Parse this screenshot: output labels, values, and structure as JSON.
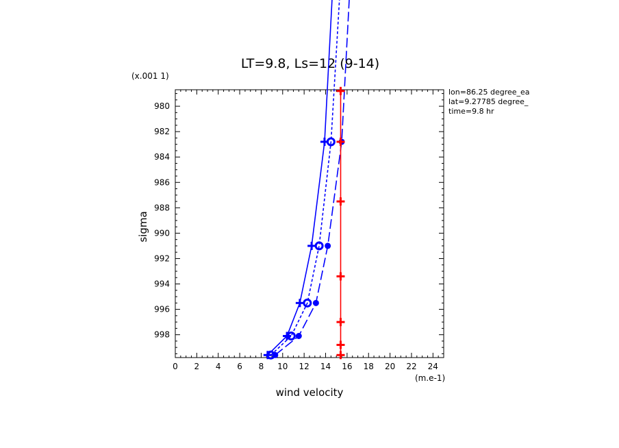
{
  "chart_data": {
    "type": "line",
    "title": "LT=9.8, Ls=12 (9-14)",
    "xlabel": "wind velocity",
    "x_unit_label": "(m.e-1)",
    "ylabel": "sigma",
    "y_scale_label": "(x.001 1)",
    "xlim": [
      0,
      25
    ],
    "ylim": [
      999.8,
      978.7
    ],
    "x_ticks": [
      "0",
      "2",
      "4",
      "6",
      "8",
      "10",
      "12",
      "14",
      "16",
      "18",
      "20",
      "22",
      "24"
    ],
    "y_ticks": [
      "980",
      "982",
      "984",
      "986",
      "988",
      "990",
      "992",
      "994",
      "996",
      "998"
    ],
    "annotations": [
      "lon=86.25 degree_ea",
      "lat=9.27785 degree_",
      "time=9.8 hr"
    ],
    "series": [
      {
        "line": "solid",
        "color": "#0000ff",
        "marker": "plus",
        "x": [
          8.6,
          10.4,
          11.6,
          12.7,
          13.9,
          14.7
        ],
        "y": [
          999.6,
          998.1,
          995.5,
          991.0,
          982.8,
          970.0
        ]
      },
      {
        "line": "dotted",
        "color": "#0000ff",
        "marker": "circle",
        "x": [
          8.9,
          10.8,
          12.3,
          13.4,
          14.5,
          15.4
        ],
        "y": [
          999.6,
          998.1,
          995.5,
          991.0,
          982.8,
          970.0
        ]
      },
      {
        "line": "dashed",
        "color": "#0000ff",
        "marker": "dot",
        "x": [
          9.3,
          11.5,
          13.1,
          14.2,
          15.5,
          16.3
        ],
        "y": [
          999.6,
          998.1,
          995.5,
          991.0,
          982.8,
          970.0
        ]
      },
      {
        "line": "solid",
        "color": "#ff0000",
        "marker": "plus",
        "x": [
          15.4,
          15.4,
          15.4,
          15.4,
          15.4,
          15.4,
          15.4
        ],
        "y": [
          999.6,
          998.8,
          997.0,
          993.4,
          987.5,
          982.8,
          978.8
        ]
      }
    ]
  }
}
